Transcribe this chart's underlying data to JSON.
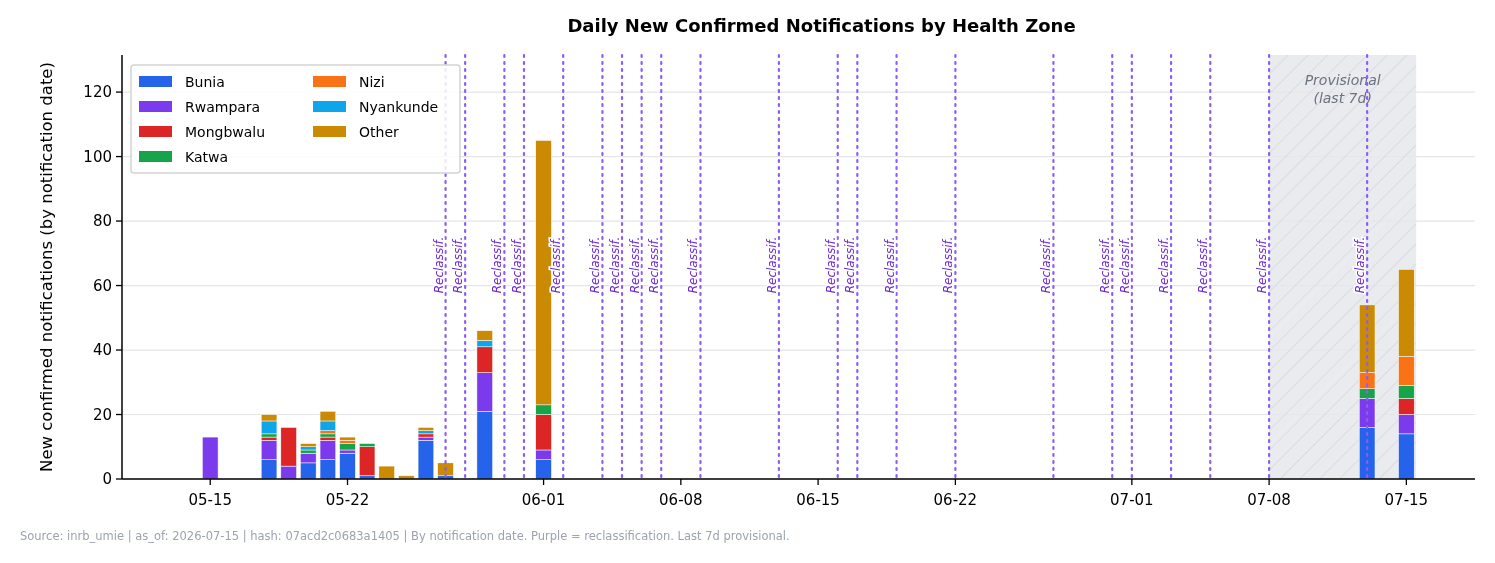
{
  "chart_data": {
    "type": "bar",
    "stacked": true,
    "title": "Daily New Confirmed Notifications by Health Zone",
    "ylabel": "New confirmed notifications (by notification date)",
    "x": [
      "2026-05-15",
      "2026-05-18",
      "2026-05-19",
      "2026-05-20",
      "2026-05-21",
      "2026-05-22",
      "2026-05-23",
      "2026-05-24",
      "2026-05-25",
      "2026-05-26",
      "2026-05-27",
      "2026-05-29",
      "2026-06-01",
      "2026-07-13",
      "2026-07-15"
    ],
    "series": [
      {
        "name": "Bunia",
        "color": "#2563eb",
        "values": [
          null,
          6,
          null,
          5,
          6,
          8,
          1,
          null,
          null,
          12,
          1,
          21,
          6,
          16,
          14
        ]
      },
      {
        "name": "Rwampara",
        "color": "#7c3aed",
        "values": [
          13,
          6,
          4,
          3,
          6,
          1,
          null,
          null,
          null,
          1,
          null,
          12,
          3,
          9,
          6
        ]
      },
      {
        "name": "Mongbwalu",
        "color": "#dc2626",
        "values": [
          null,
          1,
          12,
          null,
          1,
          null,
          9,
          null,
          null,
          1,
          null,
          8,
          11,
          null,
          5
        ]
      },
      {
        "name": "Katwa",
        "color": "#16a34a",
        "values": [
          null,
          1,
          null,
          1,
          1,
          2,
          1,
          null,
          null,
          null,
          null,
          null,
          3,
          3,
          4
        ]
      },
      {
        "name": "Nizi",
        "color": "#f97316",
        "values": [
          null,
          null,
          null,
          null,
          1,
          1,
          null,
          null,
          null,
          null,
          null,
          null,
          null,
          5,
          9
        ]
      },
      {
        "name": "Nyankunde",
        "color": "#0ea5e9",
        "values": [
          null,
          4,
          null,
          1,
          3,
          null,
          null,
          null,
          null,
          1,
          null,
          2,
          null,
          null,
          null
        ]
      },
      {
        "name": "Other",
        "color": "#ca8a04",
        "values": [
          null,
          2,
          null,
          1,
          3,
          1,
          null,
          4,
          1,
          1,
          4,
          3,
          82,
          21,
          27
        ]
      }
    ],
    "xlim": [
      "2026-05-10T12:00",
      "2026-07-18T12:00"
    ],
    "xticks": [
      {
        "value": "2026-05-15",
        "label": "05-15"
      },
      {
        "value": "2026-05-22",
        "label": "05-22"
      },
      {
        "value": "2026-06-01",
        "label": "06-01"
      },
      {
        "value": "2026-06-08",
        "label": "06-08"
      },
      {
        "value": "2026-06-15",
        "label": "06-15"
      },
      {
        "value": "2026-06-22",
        "label": "06-22"
      },
      {
        "value": "2026-07-01",
        "label": "07-01"
      },
      {
        "value": "2026-07-08",
        "label": "07-08"
      },
      {
        "value": "2026-07-15",
        "label": "07-15"
      }
    ],
    "ylim": [
      0,
      131.5
    ],
    "yticks": [
      0,
      20,
      40,
      60,
      80,
      100,
      120
    ],
    "grid": "y",
    "legend": "top left",
    "ref_lines": [
      {
        "axis": "x",
        "value": "2026-05-27",
        "label": "Reclassif.",
        "color": "#8b5cf6",
        "line_style": "dotted"
      },
      {
        "axis": "x",
        "value": "2026-05-28",
        "label": "Reclassif.",
        "color": "#8b5cf6",
        "line_style": "dotted"
      },
      {
        "axis": "x",
        "value": "2026-05-30",
        "label": "Reclassif.",
        "color": "#8b5cf6",
        "line_style": "dotted"
      },
      {
        "axis": "x",
        "value": "2026-05-31",
        "label": "Reclassif.",
        "color": "#8b5cf6",
        "line_style": "dotted"
      },
      {
        "axis": "x",
        "value": "2026-06-02",
        "label": "Reclassif.",
        "color": "#8b5cf6",
        "line_style": "dotted"
      },
      {
        "axis": "x",
        "value": "2026-06-04",
        "label": "Reclassif.",
        "color": "#8b5cf6",
        "line_style": "dotted"
      },
      {
        "axis": "x",
        "value": "2026-06-05",
        "label": "Reclassif.",
        "color": "#8b5cf6",
        "line_style": "dotted"
      },
      {
        "axis": "x",
        "value": "2026-06-06",
        "label": "Reclassif.",
        "color": "#8b5cf6",
        "line_style": "dotted"
      },
      {
        "axis": "x",
        "value": "2026-06-07",
        "label": "Reclassif.",
        "color": "#8b5cf6",
        "line_style": "dotted"
      },
      {
        "axis": "x",
        "value": "2026-06-09",
        "label": "Reclassif.",
        "color": "#8b5cf6",
        "line_style": "dotted"
      },
      {
        "axis": "x",
        "value": "2026-06-13",
        "label": "Reclassif.",
        "color": "#8b5cf6",
        "line_style": "dotted"
      },
      {
        "axis": "x",
        "value": "2026-06-16",
        "label": "Reclassif.",
        "color": "#8b5cf6",
        "line_style": "dotted"
      },
      {
        "axis": "x",
        "value": "2026-06-17",
        "label": "Reclassif.",
        "color": "#8b5cf6",
        "line_style": "dotted"
      },
      {
        "axis": "x",
        "value": "2026-06-19",
        "label": "Reclassif.",
        "color": "#8b5cf6",
        "line_style": "dotted"
      },
      {
        "axis": "x",
        "value": "2026-06-22",
        "label": "Reclassif.",
        "color": "#8b5cf6",
        "line_style": "dotted"
      },
      {
        "axis": "x",
        "value": "2026-06-27",
        "label": "Reclassif.",
        "color": "#8b5cf6",
        "line_style": "dotted"
      },
      {
        "axis": "x",
        "value": "2026-06-30",
        "label": "Reclassif.",
        "color": "#8b5cf6",
        "line_style": "dotted"
      },
      {
        "axis": "x",
        "value": "2026-07-01",
        "label": "Reclassif.",
        "color": "#8b5cf6",
        "line_style": "dotted"
      },
      {
        "axis": "x",
        "value": "2026-07-03",
        "label": "Reclassif.",
        "color": "#8b5cf6",
        "line_style": "dotted"
      },
      {
        "axis": "x",
        "value": "2026-07-05",
        "label": "Reclassif.",
        "color": "#8b5cf6",
        "line_style": "dotted"
      },
      {
        "axis": "x",
        "value": "2026-07-08",
        "label": "Reclassif.",
        "color": "#8b5cf6",
        "line_style": "dotted"
      },
      {
        "axis": "x",
        "value": "2026-07-13",
        "label": "Reclassif.",
        "color": "#8b5cf6",
        "line_style": "dotted"
      }
    ],
    "bands": [
      {
        "axis": "x",
        "from": "2026-07-08",
        "to": "2026-07-15T12:00",
        "label": "Provisional\n(last 7d)",
        "color": "#e5e7eb"
      }
    ],
    "annotations": [
      "Source: inrb_umie | as_of: 2026-07-15 | hash: 07acd2c0683a1405 | By notification date. Purple = reclassification. Last 7d provisional."
    ]
  }
}
